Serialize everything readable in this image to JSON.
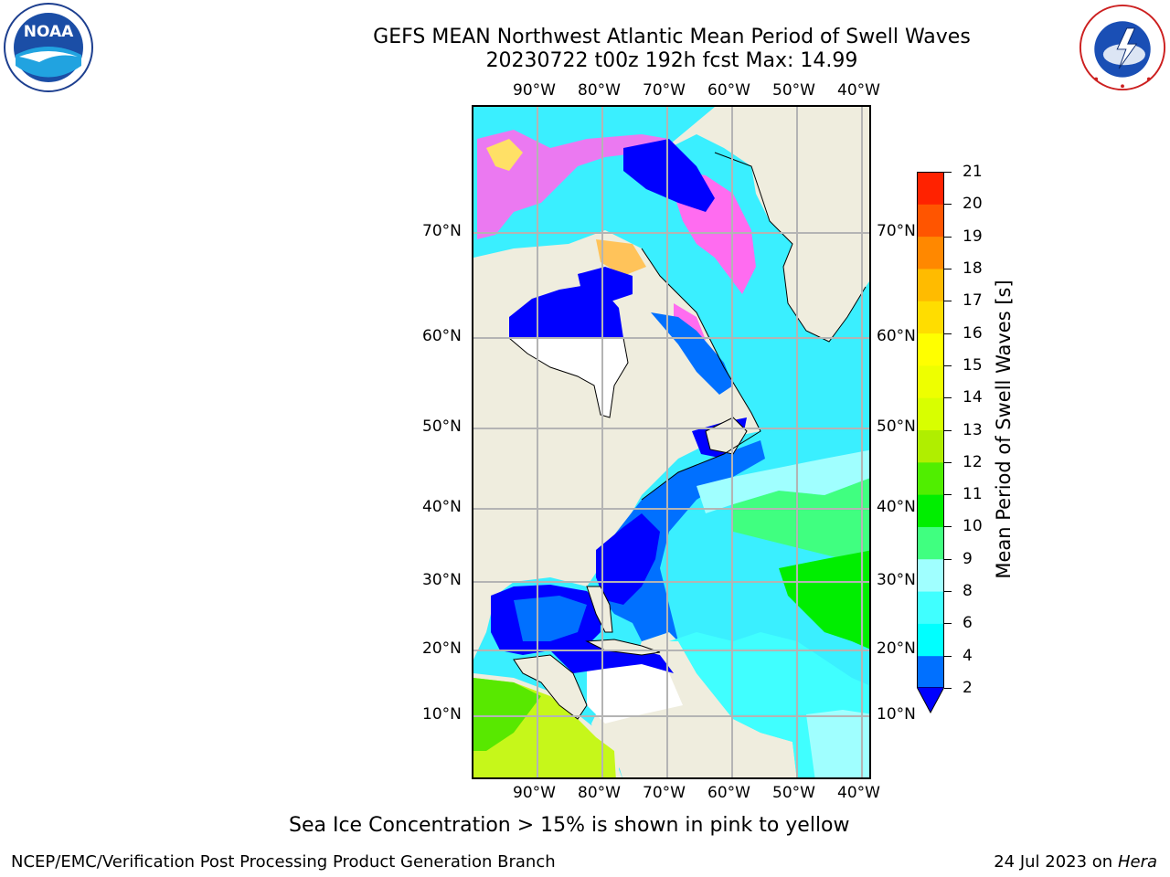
{
  "header": {
    "title_line1": "GEFS MEAN Northwest Atlantic Mean Period of Swell Waves",
    "title_line2": "20230722 t00z 192h fcst   Max: 14.99"
  },
  "logos": {
    "left": "noaa-logo",
    "right": "national-weather-service-logo"
  },
  "map": {
    "top_lon_labels": [
      "90°W",
      "80°W",
      "70°W",
      "60°W",
      "50°W",
      "40°W"
    ],
    "bottom_lon_labels": [
      "90°W",
      "80°W",
      "70°W",
      "60°W",
      "50°W",
      "40°W"
    ],
    "left_lat_labels": [
      "70°N",
      "60°N",
      "50°N",
      "40°N",
      "30°N",
      "20°N",
      "10°N"
    ],
    "right_lat_labels": [
      "70°N",
      "60°N",
      "50°N",
      "40°N",
      "30°N",
      "20°N",
      "10°N"
    ],
    "colors": {
      "land": "#efedde",
      "grid": "#b4b4b4",
      "ice_low": "#ff66ff",
      "ice_high": "#ffff66"
    }
  },
  "colorbar": {
    "label": "Mean Period of Swell Waves [s]",
    "ticks": [
      "2",
      "4",
      "6",
      "8",
      "9",
      "10",
      "11",
      "12",
      "13",
      "14",
      "15",
      "16",
      "17",
      "18",
      "19",
      "20",
      "21"
    ],
    "colors": [
      "#0070ff",
      "#00ffff",
      "#40ffff",
      "#a0ffff",
      "#40ff80",
      "#00ee00",
      "#50ee00",
      "#b0ee00",
      "#d8ff00",
      "#eeff00",
      "#ffff00",
      "#ffdd00",
      "#ffbb00",
      "#ff8800",
      "#ff5500",
      "#ff2200"
    ],
    "under_color": "#0000ff"
  },
  "footer": {
    "note": "Sea Ice Concentration > 15% is shown in pink to yellow",
    "left": "NCEP/EMC/Verification Post Processing Product Generation Branch",
    "right_date": "24 Jul 2023 on ",
    "right_host": "Hera"
  }
}
